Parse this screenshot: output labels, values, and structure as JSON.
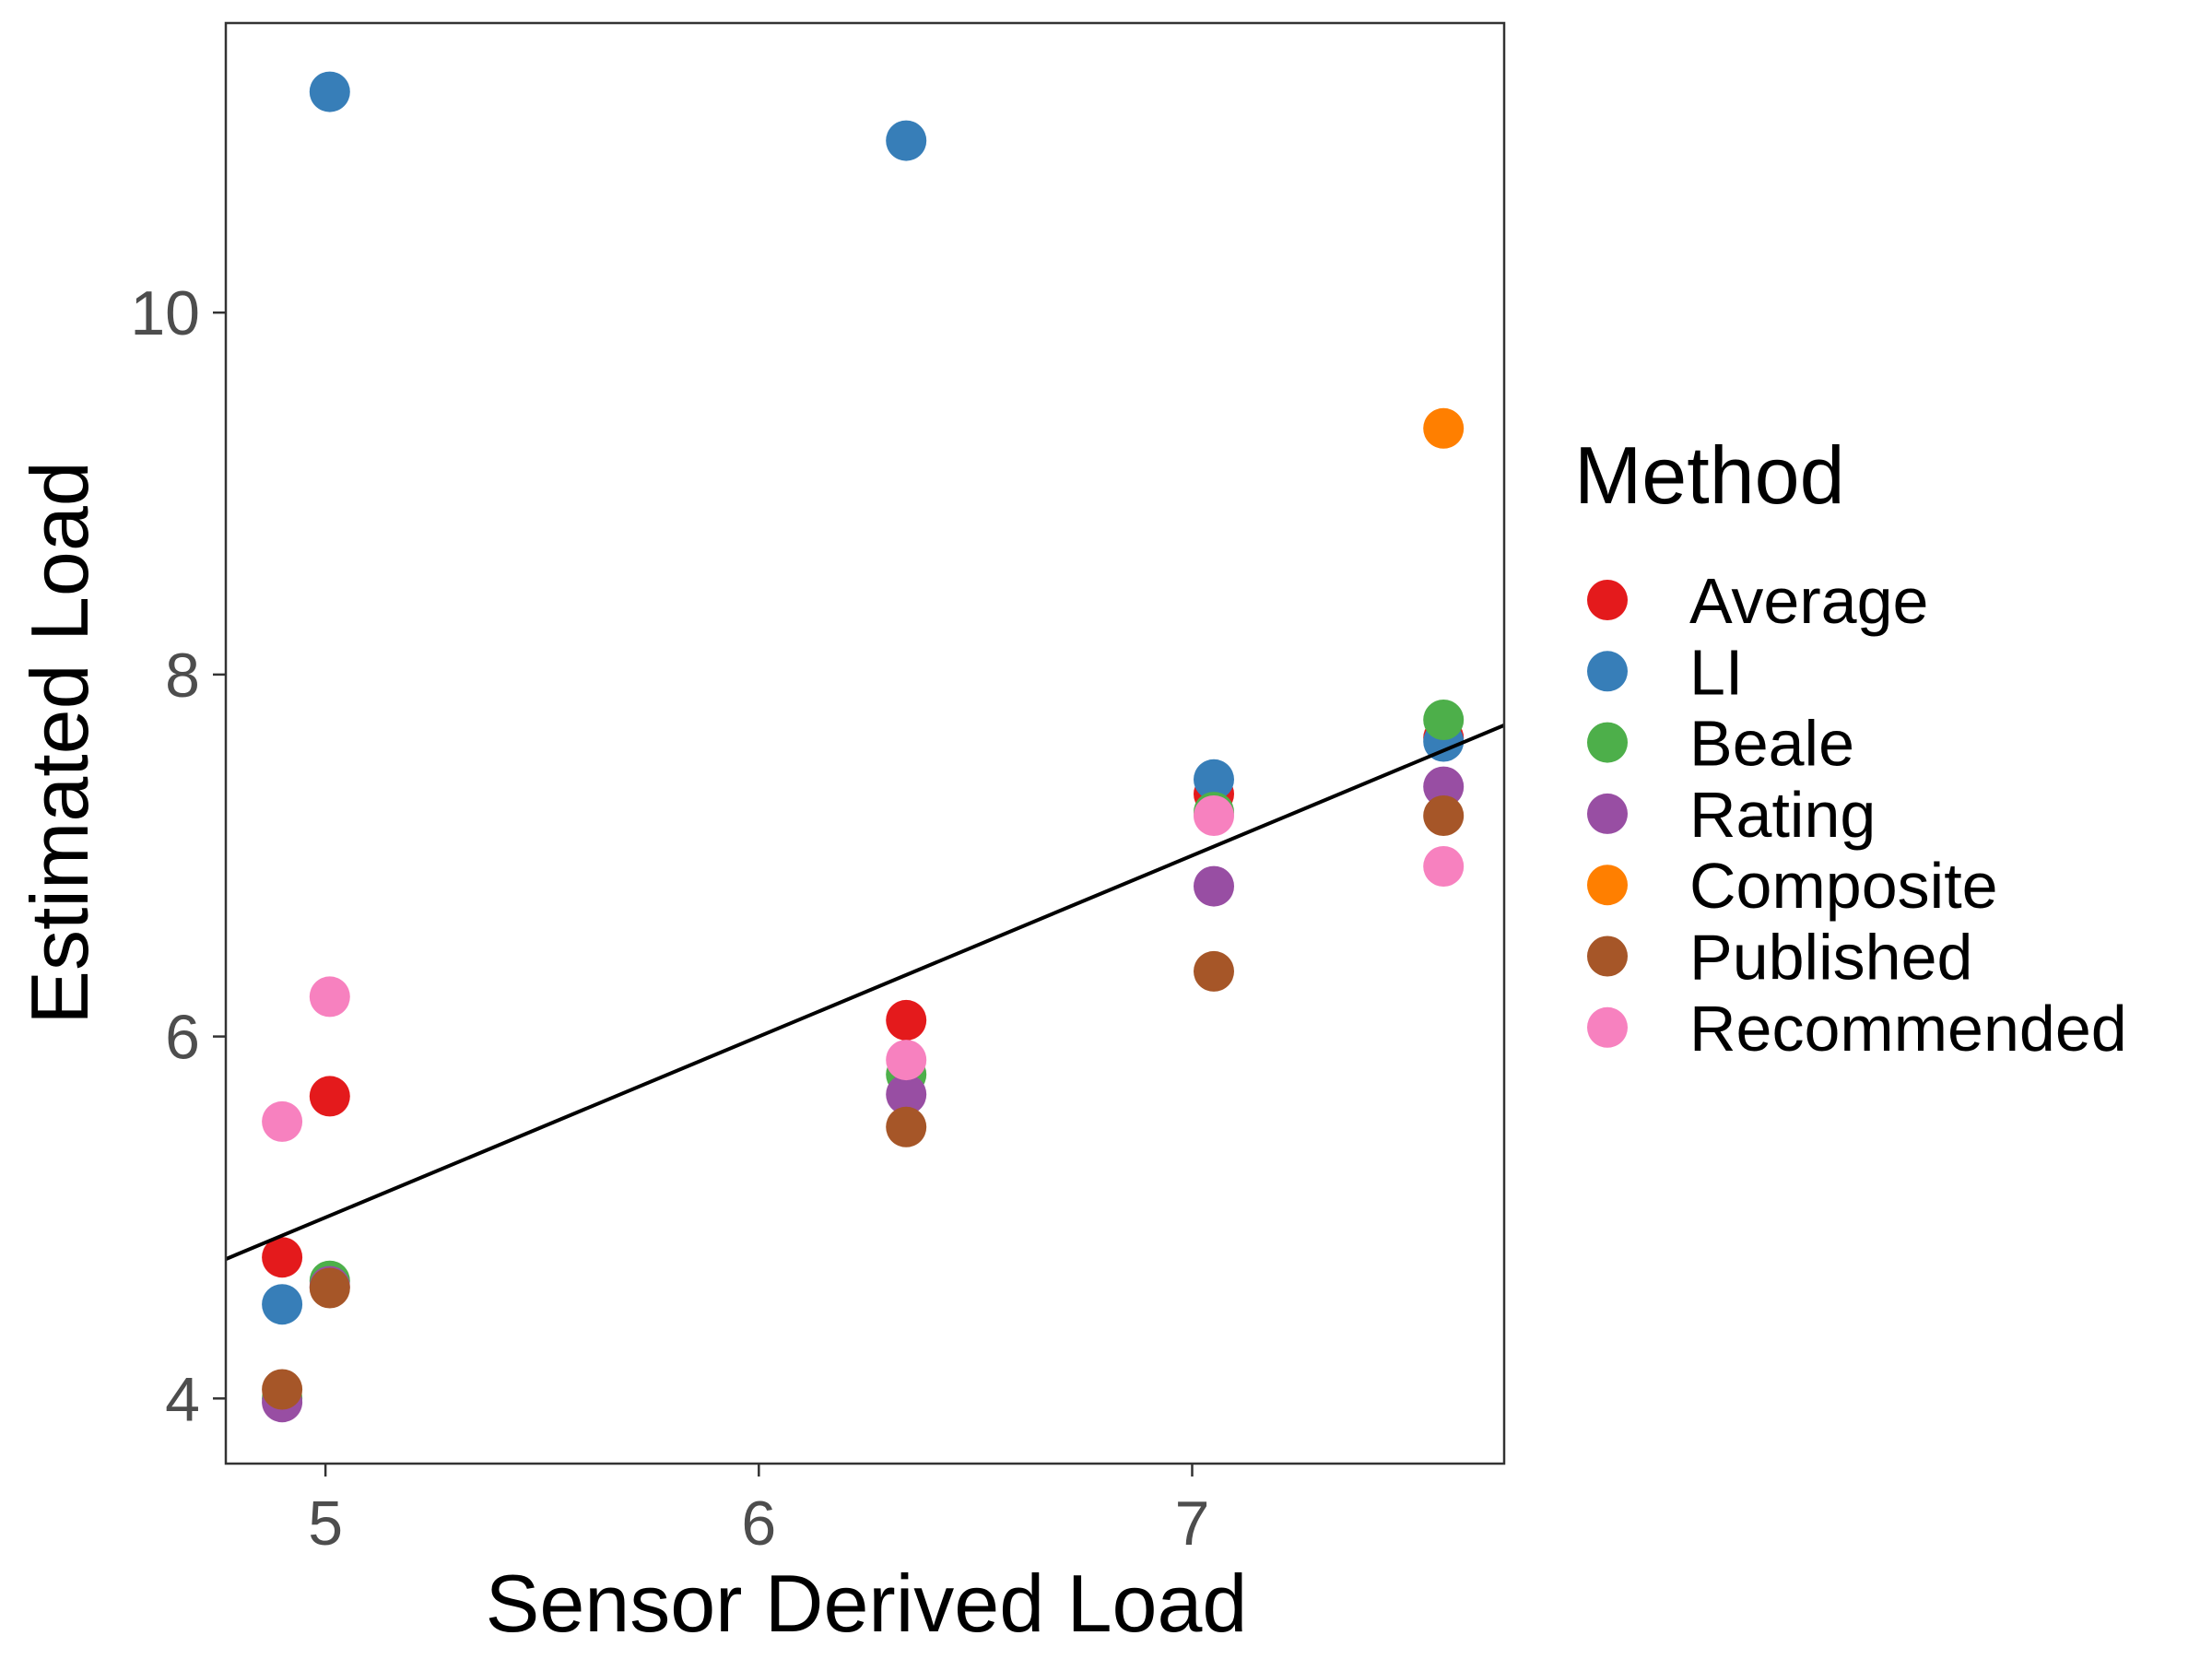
{
  "chart_data": {
    "type": "scatter",
    "xlabel": "Sensor Derived Load",
    "ylabel": "Estimated Load",
    "xlim": [
      4.77,
      7.72
    ],
    "ylim": [
      3.64,
      11.6
    ],
    "xticks": [
      5,
      6,
      7
    ],
    "yticks": [
      4,
      6,
      8,
      10
    ],
    "grid": false,
    "legend": {
      "title": "Method",
      "placement": "right"
    },
    "series": [
      {
        "name": "Average",
        "color": "#E41A1C",
        "points": [
          [
            4.9,
            4.78
          ],
          [
            5.01,
            5.67
          ],
          [
            6.34,
            6.09
          ],
          [
            7.05,
            7.34
          ],
          [
            7.58,
            7.65
          ]
        ]
      },
      {
        "name": "LI",
        "color": "#377EB8",
        "points": [
          [
            4.9,
            4.52
          ],
          [
            5.01,
            11.22
          ],
          [
            6.34,
            10.95
          ],
          [
            7.05,
            7.42
          ],
          [
            7.58,
            7.63
          ]
        ]
      },
      {
        "name": "Beale",
        "color": "#4DAF4A",
        "points": [
          [
            4.9,
            4.0
          ],
          [
            5.01,
            4.65
          ],
          [
            6.34,
            5.79
          ],
          [
            7.05,
            7.24
          ],
          [
            7.58,
            7.75
          ]
        ]
      },
      {
        "name": "Rating",
        "color": "#984EA3",
        "points": [
          [
            4.9,
            3.98
          ],
          [
            5.01,
            4.62
          ],
          [
            6.34,
            5.68
          ],
          [
            7.05,
            6.83
          ],
          [
            7.58,
            7.38
          ]
        ]
      },
      {
        "name": "Composite",
        "color": "#FF7F00",
        "points": [
          [
            7.58,
            9.36
          ]
        ]
      },
      {
        "name": "Published",
        "color": "#A65628",
        "points": [
          [
            4.9,
            4.05
          ],
          [
            5.01,
            4.61
          ],
          [
            6.34,
            5.5
          ],
          [
            7.05,
            6.36
          ],
          [
            7.58,
            7.22
          ]
        ]
      },
      {
        "name": "Recommended",
        "color": "#F781BF",
        "points": [
          [
            4.9,
            5.53
          ],
          [
            5.01,
            6.22
          ],
          [
            6.34,
            5.87
          ],
          [
            7.05,
            7.22
          ],
          [
            7.58,
            6.94
          ]
        ]
      }
    ],
    "trendline": {
      "type": "linear",
      "color": "#000000",
      "points": [
        [
          4.77,
          4.77
        ],
        [
          7.72,
          7.72
        ]
      ]
    }
  }
}
